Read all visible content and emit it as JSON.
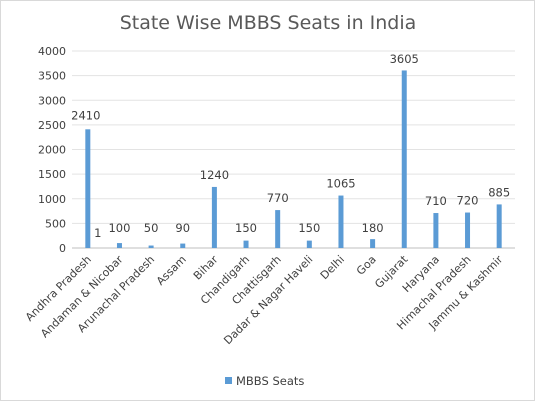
{
  "chart_data": {
    "type": "bar",
    "title": "State Wise MBBS Seats in India",
    "categories": [
      "Andhra Pradesh",
      "Andaman & Nicobar",
      "Arunachal  Pradesh",
      "Assam",
      "Bihar",
      "Chandigarh",
      "Chattisgarh",
      "Dadar & Nagar Haveli",
      "Delhi",
      "Goa",
      "Gujarat",
      "Haryana",
      "Himachal Pradesh",
      "Jammu & Kashmir"
    ],
    "series": [
      {
        "name": "MBBS Seats",
        "color": "#5b9bd5",
        "values": [
          2410,
          100,
          50,
          90,
          1240,
          150,
          770,
          150,
          1065,
          180,
          3605,
          710,
          720,
          885
        ]
      }
    ],
    "data_labels": [
      "2410",
      "100",
      "50",
      "90",
      "1240",
      "150",
      "770",
      "150",
      "1065",
      "180",
      "3605",
      "710",
      "720",
      "885"
    ],
    "extra_annotation": "1",
    "ylim": [
      0,
      4000
    ],
    "yticks": [
      0,
      500,
      1000,
      1500,
      2000,
      2500,
      3000,
      3500,
      4000
    ],
    "grid": true,
    "legend_position": "bottom"
  }
}
